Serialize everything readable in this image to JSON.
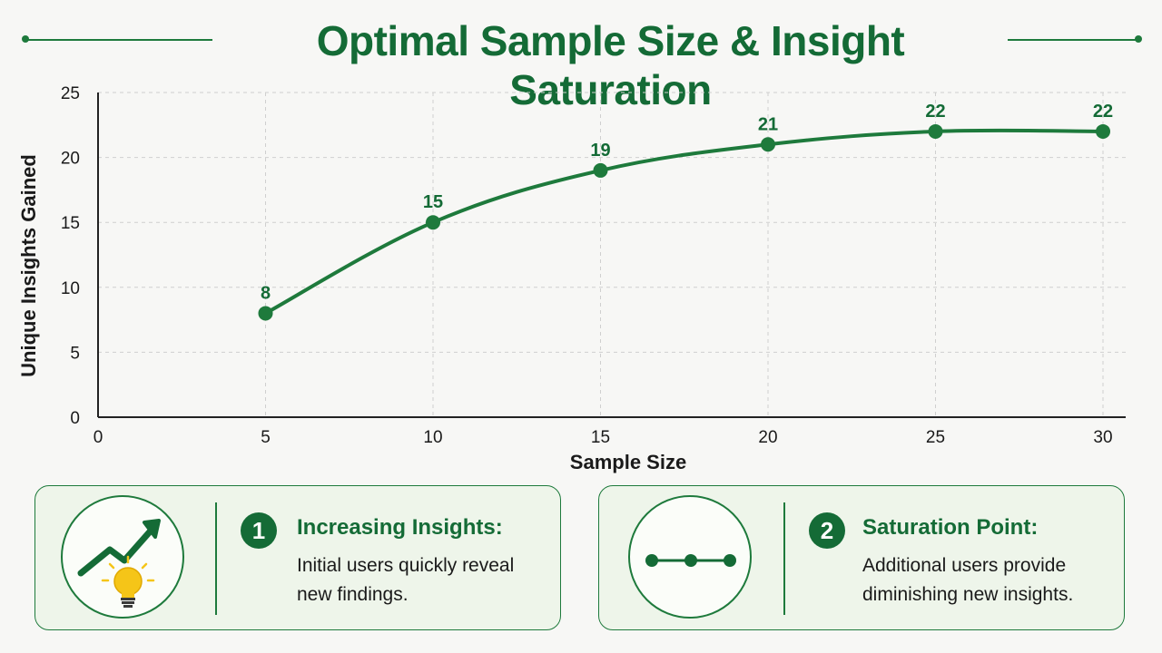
{
  "title": "Optimal Sample Size & Insight Saturation",
  "colors": {
    "accent": "#146b36",
    "line": "#1e7a3c",
    "grid": "#cfcfcf",
    "bulb": "#f5c518"
  },
  "chart_data": {
    "type": "line",
    "title": "Optimal Sample Size & Insight Saturation",
    "xlabel": "Sample Size",
    "ylabel": "Unique Insights Gained",
    "xlim": [
      0,
      30
    ],
    "ylim": [
      0,
      25
    ],
    "x_ticks": [
      "0",
      "5",
      "10",
      "15",
      "20",
      "25",
      "30"
    ],
    "y_ticks": [
      "0",
      "5",
      "10",
      "15",
      "20",
      "25"
    ],
    "grid": true,
    "x": [
      5,
      10,
      15,
      20,
      25,
      30
    ],
    "series": [
      {
        "values": [
          8,
          15,
          19,
          21,
          22,
          22
        ],
        "labels": [
          "8",
          "15",
          "19",
          "21",
          "22",
          "22"
        ]
      }
    ]
  },
  "cards": [
    {
      "number": "1",
      "title": "Increasing Insights:",
      "body": "Initial users quickly reveal new findings.",
      "icon": "trend-up-lightbulb-icon"
    },
    {
      "number": "2",
      "title": "Saturation Point:",
      "body": "Additional users provide diminishing new insights.",
      "icon": "flat-line-dots-icon"
    }
  ]
}
